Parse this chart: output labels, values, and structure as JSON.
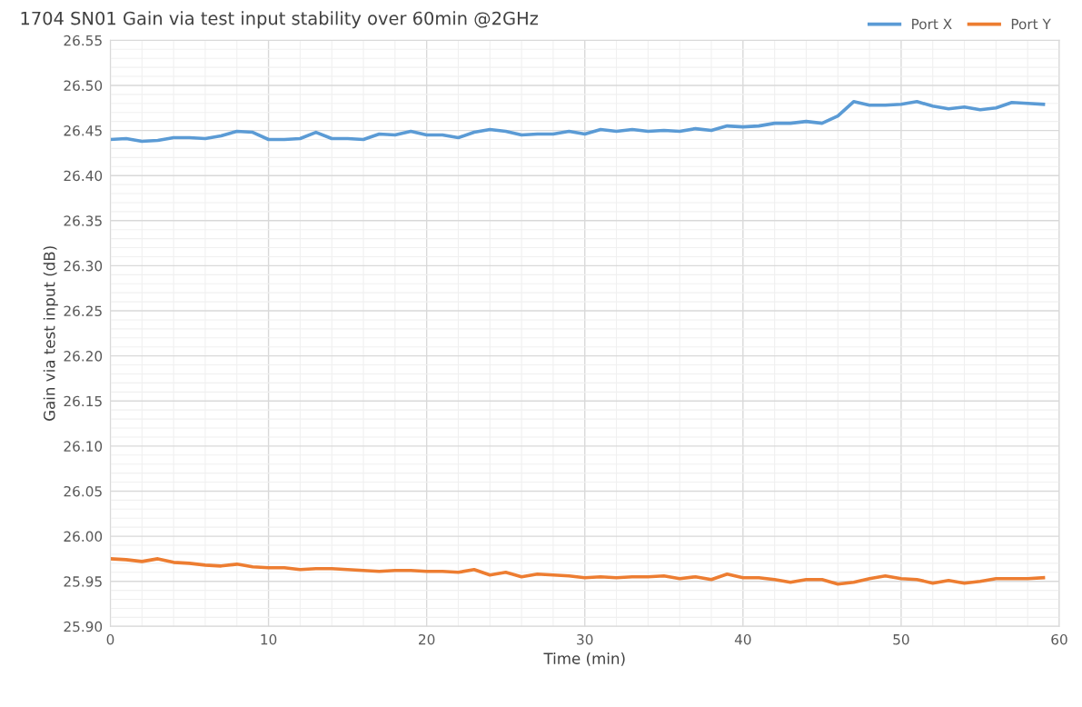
{
  "chart_data": {
    "type": "line",
    "title": "1704 SN01 Gain via test input stability over 60min @2GHz",
    "xlabel": "Time (min)",
    "ylabel": "Gain via test input (dB)",
    "x": [
      0,
      1,
      2,
      3,
      4,
      5,
      6,
      7,
      8,
      9,
      10,
      11,
      12,
      13,
      14,
      15,
      16,
      17,
      18,
      19,
      20,
      21,
      22,
      23,
      24,
      25,
      26,
      27,
      28,
      29,
      30,
      31,
      32,
      33,
      34,
      35,
      36,
      37,
      38,
      39,
      40,
      41,
      42,
      43,
      44,
      45,
      46,
      47,
      48,
      49,
      50,
      51,
      52,
      53,
      54,
      55,
      56,
      57,
      58,
      59
    ],
    "series": [
      {
        "name": "Port X",
        "color": "#5b9bd5",
        "values": [
          26.44,
          26.441,
          26.438,
          26.439,
          26.442,
          26.442,
          26.441,
          26.444,
          26.449,
          26.448,
          26.44,
          26.44,
          26.441,
          26.448,
          26.441,
          26.441,
          26.44,
          26.446,
          26.445,
          26.449,
          26.445,
          26.445,
          26.442,
          26.448,
          26.451,
          26.449,
          26.445,
          26.446,
          26.446,
          26.449,
          26.446,
          26.451,
          26.449,
          26.451,
          26.449,
          26.45,
          26.449,
          26.452,
          26.45,
          26.455,
          26.454,
          26.455,
          26.458,
          26.458,
          26.46,
          26.458,
          26.466,
          26.482,
          26.478,
          26.478,
          26.479,
          26.482,
          26.477,
          26.474,
          26.476,
          26.473,
          26.475,
          26.481,
          26.48,
          26.479
        ]
      },
      {
        "name": "Port Y",
        "color": "#ed7d31",
        "values": [
          25.975,
          25.974,
          25.972,
          25.975,
          25.971,
          25.97,
          25.968,
          25.967,
          25.969,
          25.966,
          25.965,
          25.965,
          25.963,
          25.964,
          25.964,
          25.963,
          25.962,
          25.961,
          25.962,
          25.962,
          25.961,
          25.961,
          25.96,
          25.963,
          25.957,
          25.96,
          25.955,
          25.958,
          25.957,
          25.956,
          25.954,
          25.955,
          25.954,
          25.955,
          25.955,
          25.956,
          25.953,
          25.955,
          25.952,
          25.958,
          25.954,
          25.954,
          25.952,
          25.949,
          25.952,
          25.952,
          25.947,
          25.949,
          25.953,
          25.956,
          25.953,
          25.952,
          25.948,
          25.951,
          25.948,
          25.95,
          25.953,
          25.953,
          25.953,
          25.954
        ]
      }
    ],
    "xlim": [
      0,
      60
    ],
    "xticks": [
      0,
      10,
      20,
      30,
      40,
      50,
      60
    ],
    "ylim": [
      25.9,
      26.55
    ],
    "yticks": [
      {
        "value": 25.9,
        "label": "25.90"
      },
      {
        "value": 25.95,
        "label": "25.95"
      },
      {
        "value": 26.0,
        "label": "26.00"
      },
      {
        "value": 26.05,
        "label": "26.05"
      },
      {
        "value": 26.1,
        "label": "26.10"
      },
      {
        "value": 26.15,
        "label": "26.15"
      },
      {
        "value": 26.2,
        "label": "26.20"
      },
      {
        "value": 26.25,
        "label": "26.25"
      },
      {
        "value": 26.3,
        "label": "26.30"
      },
      {
        "value": 26.35,
        "label": "26.35"
      },
      {
        "value": 26.4,
        "label": "26.40"
      },
      {
        "value": 26.45,
        "label": "26.45"
      },
      {
        "value": 26.5,
        "label": "26.50"
      },
      {
        "value": 26.55,
        "label": "26.55"
      }
    ],
    "grid": true,
    "legend": "top right",
    "marker": "none",
    "line_style": "solid"
  }
}
